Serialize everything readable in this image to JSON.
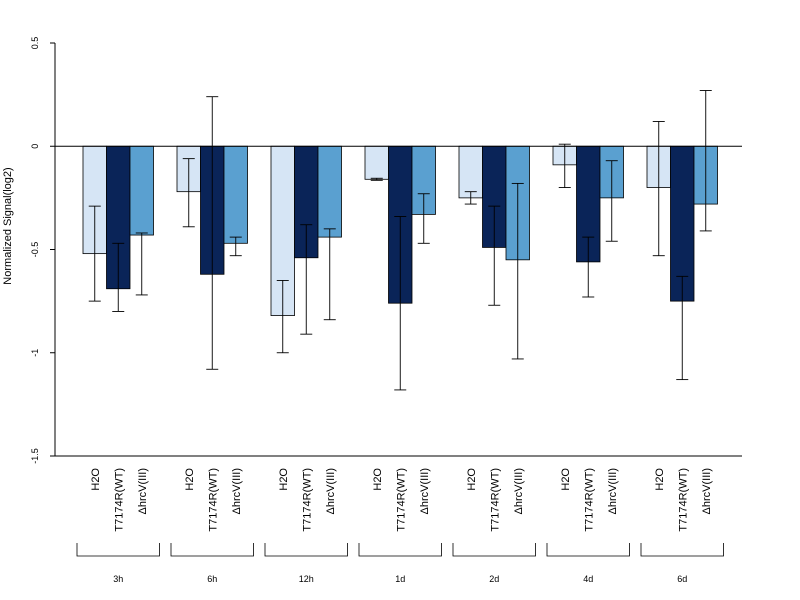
{
  "chart_data": {
    "type": "bar",
    "ylabel": "Normalized Signal(log2)",
    "ylim": [
      -1.5,
      0.5
    ],
    "yticks": [
      -1.5,
      -1,
      -0.5,
      0,
      0.5
    ],
    "ytick_labels": [
      "-1.5",
      "-1",
      "-0.5",
      "0",
      "0.5"
    ],
    "reference_line": 0,
    "grid": false,
    "legend": "none",
    "series": [
      {
        "label": "H2O",
        "color": "#d6e5f5",
        "values": [
          -0.52,
          -0.22,
          -0.82,
          -0.16,
          -0.25,
          -0.09,
          -0.2
        ],
        "err_low": [
          -0.75,
          -0.39,
          -1.0,
          -0.165,
          -0.28,
          -0.2,
          -0.53
        ],
        "err_high": [
          -0.29,
          -0.06,
          -0.65,
          -0.155,
          -0.22,
          0.01,
          0.12
        ]
      },
      {
        "label": "T7174R(WT)",
        "color": "#0a2458",
        "values": [
          -0.69,
          -0.62,
          -0.54,
          -0.76,
          -0.49,
          -0.56,
          -0.75
        ],
        "err_low": [
          -0.8,
          -1.08,
          -0.91,
          -1.18,
          -0.77,
          -0.73,
          -1.13
        ],
        "err_high": [
          -0.47,
          0.24,
          -0.38,
          -0.34,
          -0.29,
          -0.44,
          -0.63
        ]
      },
      {
        "label": "ΔhrcV(III)",
        "color": "#5aa0d0",
        "values": [
          -0.43,
          -0.47,
          -0.44,
          -0.33,
          -0.55,
          -0.25,
          -0.28
        ],
        "err_low": [
          -0.72,
          -0.53,
          -0.84,
          -0.47,
          -1.03,
          -0.46,
          -0.41
        ],
        "err_high": [
          -0.42,
          -0.44,
          -0.4,
          -0.23,
          -0.18,
          -0.07,
          0.27
        ]
      }
    ],
    "groups": [
      "3h",
      "6h",
      "12h",
      "1d",
      "2d",
      "4d",
      "6d"
    ]
  }
}
